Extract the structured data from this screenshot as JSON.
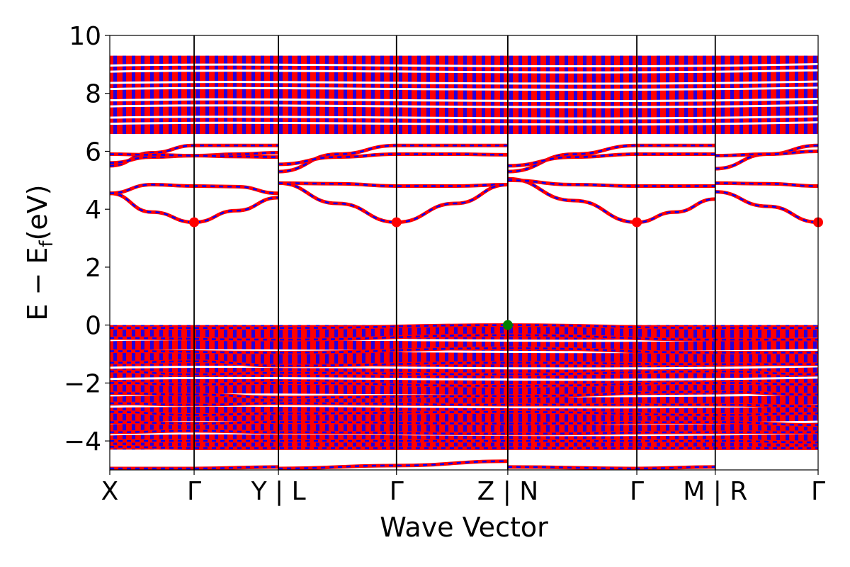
{
  "chart_data": {
    "type": "line",
    "title": "",
    "xlabel": "Wave Vector",
    "ylabel": "E − E",
    "ylabel_subscript": "f",
    "ylabel_unit": "(eV)",
    "ylim": [
      -5,
      10
    ],
    "yticks": [
      "−4",
      "−2",
      "0",
      "2",
      "4",
      "6",
      "8",
      "10"
    ],
    "ytick_values": [
      -4,
      -2,
      0,
      2,
      4,
      6,
      8,
      10
    ],
    "kpoints": [
      {
        "label": "X",
        "k": 0.0
      },
      {
        "label": "Γ",
        "k": 1.0
      },
      {
        "label": "Y | L",
        "k": 2.0
      },
      {
        "label": "Γ",
        "k": 3.4
      },
      {
        "label": "Z | N",
        "k": 4.72
      },
      {
        "label": "Γ",
        "k": 6.25
      },
      {
        "label": "M | R",
        "k": 7.18
      },
      {
        "label": "Γ",
        "k": 8.4
      }
    ],
    "xlim": [
      0,
      8.4
    ],
    "colors": {
      "spin_up": "#ff0000",
      "spin_down": "#0000ff",
      "cbm": "#ff0000",
      "vbm": "#008000"
    },
    "series": [
      {
        "values": [
          [
            0.0,
            4.55
          ],
          [
            0.5,
            3.9
          ],
          [
            1.0,
            3.55
          ],
          [
            1.5,
            3.95
          ],
          [
            2.0,
            4.4
          ]
        ]
      },
      {
        "values": [
          [
            0.0,
            4.55
          ],
          [
            0.5,
            4.85
          ],
          [
            1.0,
            4.8
          ],
          [
            1.5,
            4.78
          ],
          [
            2.0,
            4.55
          ]
        ]
      },
      {
        "values": [
          [
            0.0,
            5.5
          ],
          [
            0.5,
            5.95
          ],
          [
            1.0,
            6.2
          ],
          [
            1.5,
            6.2
          ],
          [
            2.0,
            6.2
          ]
        ]
      },
      {
        "values": [
          [
            0.0,
            5.6
          ],
          [
            0.5,
            5.8
          ],
          [
            1.0,
            5.85
          ],
          [
            1.5,
            5.9
          ],
          [
            2.0,
            5.95
          ]
        ]
      },
      {
        "values": [
          [
            0.0,
            5.9
          ],
          [
            0.5,
            5.88
          ],
          [
            1.0,
            5.85
          ],
          [
            1.5,
            5.82
          ],
          [
            2.0,
            5.8
          ]
        ]
      },
      {
        "values": [
          [
            2.0,
            4.9
          ],
          [
            2.7,
            4.88
          ],
          [
            3.4,
            4.8
          ],
          [
            4.1,
            4.8
          ],
          [
            4.72,
            4.85
          ]
        ]
      },
      {
        "values": [
          [
            2.0,
            4.9
          ],
          [
            2.7,
            4.2
          ],
          [
            3.4,
            3.55
          ],
          [
            4.1,
            4.2
          ],
          [
            4.72,
            4.85
          ]
        ]
      },
      {
        "values": [
          [
            2.0,
            5.3
          ],
          [
            2.7,
            5.9
          ],
          [
            3.4,
            6.2
          ],
          [
            4.1,
            6.2
          ],
          [
            4.72,
            6.2
          ]
        ]
      },
      {
        "values": [
          [
            2.0,
            5.55
          ],
          [
            2.7,
            5.8
          ],
          [
            3.4,
            5.9
          ],
          [
            4.1,
            5.9
          ],
          [
            4.72,
            5.88
          ]
        ]
      },
      {
        "values": [
          [
            4.72,
            5.05
          ],
          [
            5.5,
            4.3
          ],
          [
            6.25,
            3.55
          ],
          [
            6.7,
            3.9
          ],
          [
            7.18,
            4.35
          ]
        ]
      },
      {
        "values": [
          [
            4.72,
            5.0
          ],
          [
            5.5,
            4.85
          ],
          [
            6.25,
            4.8
          ],
          [
            6.7,
            4.8
          ],
          [
            7.18,
            4.8
          ]
        ]
      },
      {
        "values": [
          [
            4.72,
            5.3
          ],
          [
            5.5,
            5.9
          ],
          [
            6.25,
            6.2
          ],
          [
            6.7,
            6.2
          ],
          [
            7.18,
            6.2
          ]
        ]
      },
      {
        "values": [
          [
            4.72,
            5.5
          ],
          [
            5.5,
            5.8
          ],
          [
            6.25,
            5.9
          ],
          [
            6.7,
            5.9
          ],
          [
            7.18,
            5.9
          ]
        ]
      },
      {
        "values": [
          [
            7.18,
            4.9
          ],
          [
            7.8,
            4.88
          ],
          [
            8.4,
            4.8
          ]
        ]
      },
      {
        "values": [
          [
            7.18,
            4.6
          ],
          [
            7.8,
            4.1
          ],
          [
            8.4,
            3.55
          ]
        ]
      },
      {
        "values": [
          [
            7.18,
            5.4
          ],
          [
            7.8,
            5.9
          ],
          [
            8.4,
            6.2
          ]
        ]
      },
      {
        "values": [
          [
            7.18,
            5.85
          ],
          [
            7.8,
            5.9
          ],
          [
            8.4,
            6.0
          ]
        ]
      },
      {
        "values": [
          [
            0.0,
            -0.1
          ],
          [
            2.0,
            -0.1
          ],
          [
            4.72,
            0.0
          ],
          [
            7.18,
            -0.1
          ],
          [
            8.4,
            -0.1
          ]
        ]
      },
      {
        "values": [
          [
            0.0,
            -0.45
          ],
          [
            2.0,
            -0.5
          ],
          [
            4.72,
            -0.35
          ],
          [
            7.18,
            -0.5
          ],
          [
            8.4,
            -0.5
          ]
        ]
      },
      {
        "values": [
          [
            0.0,
            -0.9
          ],
          [
            2.0,
            -0.95
          ],
          [
            4.72,
            -0.8
          ],
          [
            7.18,
            -0.95
          ],
          [
            8.4,
            -0.95
          ]
        ]
      },
      {
        "values": [
          [
            0.0,
            -1.3
          ],
          [
            1.0,
            -1.25
          ],
          [
            2.0,
            -1.4
          ],
          [
            4.72,
            -1.3
          ],
          [
            7.18,
            -1.35
          ],
          [
            8.4,
            -1.35
          ]
        ]
      },
      {
        "values": [
          [
            0.0,
            -1.6
          ],
          [
            1.0,
            -1.7
          ],
          [
            2.0,
            -1.65
          ],
          [
            4.72,
            -1.7
          ],
          [
            7.18,
            -1.6
          ],
          [
            8.4,
            -1.7
          ]
        ]
      },
      {
        "values": [
          [
            0.0,
            -2.0
          ],
          [
            1.0,
            -2.05
          ],
          [
            2.0,
            -2.0
          ],
          [
            4.72,
            -2.1
          ],
          [
            7.18,
            -2.0
          ],
          [
            8.4,
            -2.05
          ]
        ]
      },
      {
        "values": [
          [
            0.0,
            -2.35
          ],
          [
            1.0,
            -2.4
          ],
          [
            2.0,
            -2.5
          ],
          [
            4.72,
            -2.45
          ],
          [
            7.18,
            -2.3
          ],
          [
            8.4,
            -2.4
          ]
        ]
      },
      {
        "values": [
          [
            0.0,
            -2.7
          ],
          [
            1.0,
            -2.75
          ],
          [
            2.0,
            -2.7
          ],
          [
            4.72,
            -2.75
          ],
          [
            7.18,
            -2.75
          ],
          [
            8.4,
            -2.8
          ]
        ]
      },
      {
        "values": [
          [
            0.0,
            -3.0
          ],
          [
            1.0,
            -3.1
          ],
          [
            2.0,
            -3.05
          ],
          [
            4.72,
            -3.0
          ],
          [
            7.18,
            -3.1
          ],
          [
            8.4,
            -3.05
          ]
        ]
      },
      {
        "values": [
          [
            0.0,
            -3.35
          ],
          [
            1.0,
            -3.4
          ],
          [
            2.0,
            -3.35
          ],
          [
            4.72,
            -3.4
          ],
          [
            7.18,
            -3.35
          ],
          [
            8.4,
            -3.45
          ]
        ]
      },
      {
        "values": [
          [
            0.0,
            -3.7
          ],
          [
            1.0,
            -3.65
          ],
          [
            2.0,
            -3.7
          ],
          [
            4.72,
            -3.75
          ],
          [
            7.18,
            -3.7
          ],
          [
            8.4,
            -3.7
          ]
        ]
      },
      {
        "values": [
          [
            0.0,
            -4.0
          ],
          [
            1.0,
            -4.0
          ],
          [
            2.0,
            -4.0
          ],
          [
            4.72,
            -4.0
          ],
          [
            7.18,
            -4.0
          ],
          [
            8.4,
            -4.05
          ]
        ]
      },
      {
        "values": [
          [
            0.0,
            -4.2
          ],
          [
            1.0,
            -4.25
          ],
          [
            2.0,
            -4.25
          ],
          [
            4.72,
            -4.25
          ],
          [
            7.18,
            -4.25
          ],
          [
            8.4,
            -4.25
          ]
        ]
      },
      {
        "values": [
          [
            2.0,
            -4.95
          ],
          [
            3.4,
            -4.85
          ],
          [
            4.72,
            -4.7
          ]
        ]
      },
      {
        "values": [
          [
            0.0,
            -4.95
          ],
          [
            1.0,
            -4.95
          ],
          [
            2.0,
            -4.9
          ]
        ]
      },
      {
        "values": [
          [
            4.72,
            -4.9
          ],
          [
            6.25,
            -4.95
          ],
          [
            7.18,
            -4.9
          ]
        ]
      }
    ],
    "band_regions": [
      {
        "name": "conduction continuum",
        "ymin": 6.6,
        "ymax": 9.3
      },
      {
        "name": "valence continuum",
        "ymin": -4.3,
        "ymax": 0.0
      }
    ],
    "markers": [
      {
        "name": "CBM",
        "k": 1.0,
        "y": 3.55
      },
      {
        "name": "CBM",
        "k": 3.4,
        "y": 3.55
      },
      {
        "name": "CBM",
        "k": 6.25,
        "y": 3.55
      },
      {
        "name": "CBM",
        "k": 8.4,
        "y": 3.55
      },
      {
        "name": "VBM",
        "k": 4.72,
        "y": 0.0
      }
    ]
  }
}
